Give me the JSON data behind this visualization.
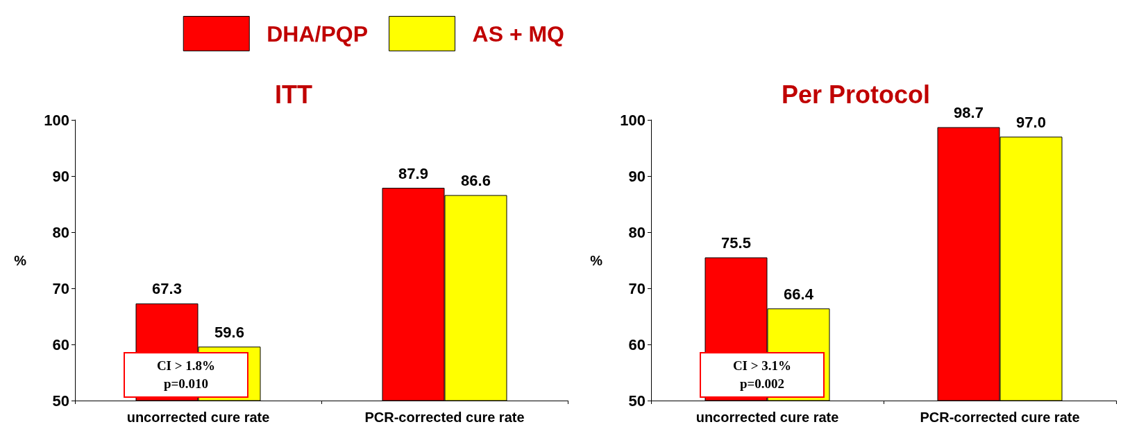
{
  "chart_data": [
    {
      "type": "bar",
      "title": "ITT",
      "ylabel": "%",
      "categories": [
        "uncorrected cure rate",
        "PCR-corrected cure rate"
      ],
      "series": [
        {
          "name": "DHA/PQP",
          "color": "#ff0000",
          "values": [
            67.3,
            87.9
          ]
        },
        {
          "name": "AS + MQ",
          "color": "#ffff00",
          "values": [
            59.6,
            86.6
          ]
        }
      ],
      "ylim": [
        50,
        100
      ],
      "yticks": [
        50,
        60,
        70,
        80,
        90,
        100
      ],
      "data_labels": true,
      "legend": "top right",
      "annotations": [
        "CI > 1.8%\np=0.010"
      ]
    },
    {
      "type": "bar",
      "title": "Per Protocol",
      "ylabel": "%",
      "categories": [
        "uncorrected cure rate",
        "PCR-corrected cure rate"
      ],
      "series": [
        {
          "color": "#ff0000",
          "values": [
            75.5,
            98.7
          ],
          "value_labels": [
            "75.5",
            "98.7"
          ]
        },
        {
          "color": "#ffff00",
          "values": [
            66.4,
            97.0
          ],
          "value_labels": [
            "66.4",
            "97.0"
          ]
        }
      ],
      "ylim": [
        50,
        100
      ],
      "yticks": [
        50,
        60,
        70,
        80,
        90,
        100
      ],
      "data_labels": true,
      "annotations": [
        "CI > 3.1%\np=0.002"
      ]
    }
  ]
}
